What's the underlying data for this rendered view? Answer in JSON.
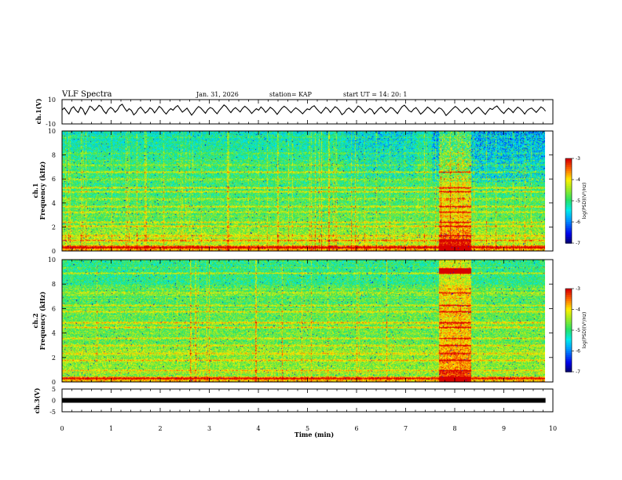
{
  "header": {
    "title": "VLF Spectra",
    "date": "Jan. 31, 2026",
    "station": "station= KAP",
    "start_ut": "start  UT =  14: 20: 1"
  },
  "chart_data": [
    {
      "type": "line",
      "name": "ch1-waveform",
      "ylabel": "ch.1(V)",
      "ylim": [
        -10,
        10
      ],
      "yticks": [
        "10",
        "-10"
      ],
      "xlim": [
        0,
        10
      ],
      "samples_x_range": [
        0,
        9.85
      ],
      "values": [
        1.5,
        3.2,
        0.5,
        -1.8,
        2.6,
        4.1,
        1.2,
        -0.6,
        3.8,
        2.1,
        -2.2,
        0.9,
        4.6,
        3.4,
        1.1,
        2.8,
        5.3,
        4.0,
        0.7,
        -1.5,
        1.9,
        3.6,
        2.2,
        -0.4,
        1.6,
        4.9,
        6.2,
        3.1,
        0.4,
        2.5,
        1.0,
        -2.6,
        -0.8,
        2.3,
        3.9,
        1.4,
        -1.1,
        0.6,
        3.3,
        2.0,
        -0.9,
        1.7,
        4.4,
        2.9,
        0.2,
        -1.9,
        0.8,
        2.6,
        1.3,
        3.7,
        5.1,
        2.4,
        -0.3,
        1.2,
        3.0,
        0.1,
        -2.8,
        -0.5,
        2.2,
        4.3,
        3.1,
        0.9,
        -1.2,
        1.8,
        3.5,
        2.7,
        0.4,
        -1.6,
        1.1,
        3.2,
        5.6,
        4.2,
        1.5,
        -0.7,
        2.0,
        3.4,
        1.6,
        -0.2,
        2.8,
        4.5,
        3.0,
        1.0,
        -1.4,
        0.7,
        2.5,
        1.3,
        4.0,
        2.1,
        -0.6,
        1.4,
        3.7,
        2.4,
        0.3,
        -2.1,
        0.5,
        2.9,
        4.6,
        3.2,
        1.1,
        -0.8,
        1.5,
        3.3,
        2.0,
        0.2,
        -1.7,
        0.6,
        2.4,
        1.7,
        3.9,
        5.0,
        2.6,
        0.4,
        -1.3,
        1.2,
        3.6,
        2.2,
        -0.5,
        1.8,
        4.1,
        3.0,
        0.8,
        -2.4,
        -0.9,
        1.9,
        3.1,
        1.5,
        -0.4,
        2.3,
        4.7,
        3.6,
        1.2,
        -1.0,
        0.9,
        2.7,
        1.4,
        -1.8,
        0.3,
        2.6,
        3.8,
        1.9,
        -0.6,
        1.3,
        3.5,
        2.8,
        0.6,
        -1.5,
        1.6,
        4.2,
        5.4,
        3.3,
        0.9,
        -0.2,
        2.1,
        3.4,
        1.0,
        -2.0,
        -0.4,
        1.8,
        3.9,
        2.5,
        0.5,
        -1.1,
        1.4,
        3.2,
        2.3,
        0.1,
        -3.1,
        -1.2,
        0.8,
        2.7,
        4.4,
        2.9,
        0.7,
        -0.9,
        1.5,
        3.0,
        1.2,
        -1.6,
        0.4,
        2.5,
        3.7,
        2.0,
        -0.3,
        -2.2,
        0.6,
        2.8,
        1.9,
        3.6,
        4.8,
        2.4,
        0.2,
        -1.4,
        1.1,
        2.9,
        1.5,
        -0.7,
        1.9,
        3.8,
        2.6,
        0.6,
        -1.9,
        0.9,
        2.4,
        3.1,
        1.3,
        -0.5,
        1.7,
        4.0,
        2.8,
        0.5
      ]
    },
    {
      "type": "heatmap",
      "name": "ch1-spectrogram",
      "ylabel": "ch.1\nFrequency (kHz)",
      "ylim": [
        0,
        10
      ],
      "xlim": [
        0,
        10
      ],
      "yticks": [
        "0",
        "2",
        "4",
        "6",
        "8",
        "10"
      ],
      "colorbar": {
        "label": "log(PSD)(V²/Hz)",
        "range": [
          -7,
          -3
        ],
        "ticks": [
          "-3",
          "-4",
          "-5",
          "-6",
          "-7"
        ]
      }
    },
    {
      "type": "heatmap",
      "name": "ch2-spectrogram",
      "ylabel": "ch.2\nFrequency (kHz)",
      "ylim": [
        0,
        10
      ],
      "xlim": [
        0,
        10
      ],
      "yticks": [
        "0",
        "2",
        "4",
        "6",
        "8",
        "10"
      ],
      "colorbar": {
        "label": "log(PSD)(V²/Hz)",
        "range": [
          -7,
          -3
        ],
        "ticks": [
          "-3",
          "-4",
          "-5",
          "-6",
          "-7"
        ]
      }
    },
    {
      "type": "line",
      "name": "ch3-signal",
      "ylabel": "ch.3(V)",
      "ylim": [
        -5,
        5
      ],
      "yticks": [
        "5",
        "0",
        "-5"
      ],
      "xlim": [
        0,
        10
      ],
      "constant_value": 0,
      "x_end": 9.85
    }
  ],
  "x_axis": {
    "label": "Time  (min)",
    "ticks": [
      "0",
      "1",
      "2",
      "3",
      "4",
      "5",
      "6",
      "7",
      "8",
      "9",
      "10"
    ]
  }
}
